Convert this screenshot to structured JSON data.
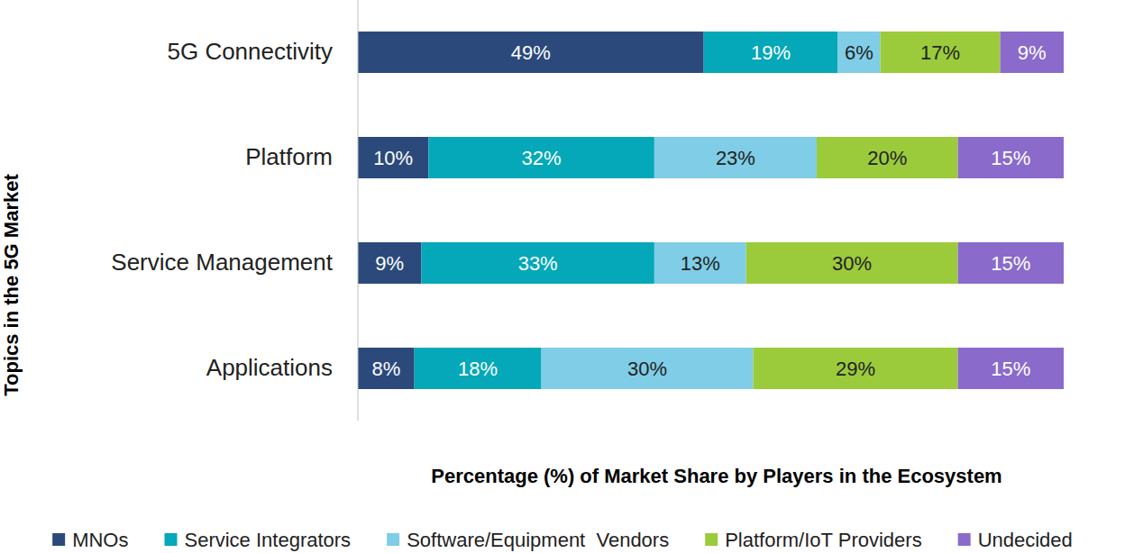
{
  "chart_data": {
    "type": "bar",
    "orientation": "horizontal",
    "stacked": true,
    "data_labels": true,
    "tick_labels": "y",
    "y_label": "Topics in the 5G Market",
    "x_label": "Percentage (%) of Market Share by Players in the Ecosystem",
    "categories": [
      "5G Connectivity",
      "Platform",
      "Service Management",
      "Applications"
    ],
    "xlim": [
      0,
      100
    ],
    "legend": "bottom",
    "series": [
      {
        "name": "MNOs",
        "color": "#2b4a7b",
        "values": [
          49,
          10,
          9,
          8
        ],
        "value_labels": [
          "49%",
          "10%",
          "9%",
          "8%"
        ]
      },
      {
        "name": "Service Integrators",
        "color": "#05a8b8",
        "values": [
          19,
          32,
          33,
          18
        ],
        "value_labels": [
          "19%",
          "32%",
          "33%",
          "18%"
        ]
      },
      {
        "name": "Software/Equipment  Vendors",
        "color": "#7fcde6",
        "values": [
          6,
          23,
          13,
          30
        ],
        "value_labels": [
          "6%",
          "23%",
          "13%",
          "30%"
        ]
      },
      {
        "name": "Platform/IoT Providers",
        "color": "#9bcb3b",
        "values": [
          17,
          20,
          30,
          29
        ],
        "value_labels": [
          "17%",
          "20%",
          "30%",
          "29%"
        ]
      },
      {
        "name": "Undecided",
        "color": "#8a6bcb",
        "values": [
          9,
          15,
          15,
          15
        ],
        "value_labels": [
          "9%",
          "15%",
          "15%",
          "15%"
        ]
      }
    ]
  }
}
